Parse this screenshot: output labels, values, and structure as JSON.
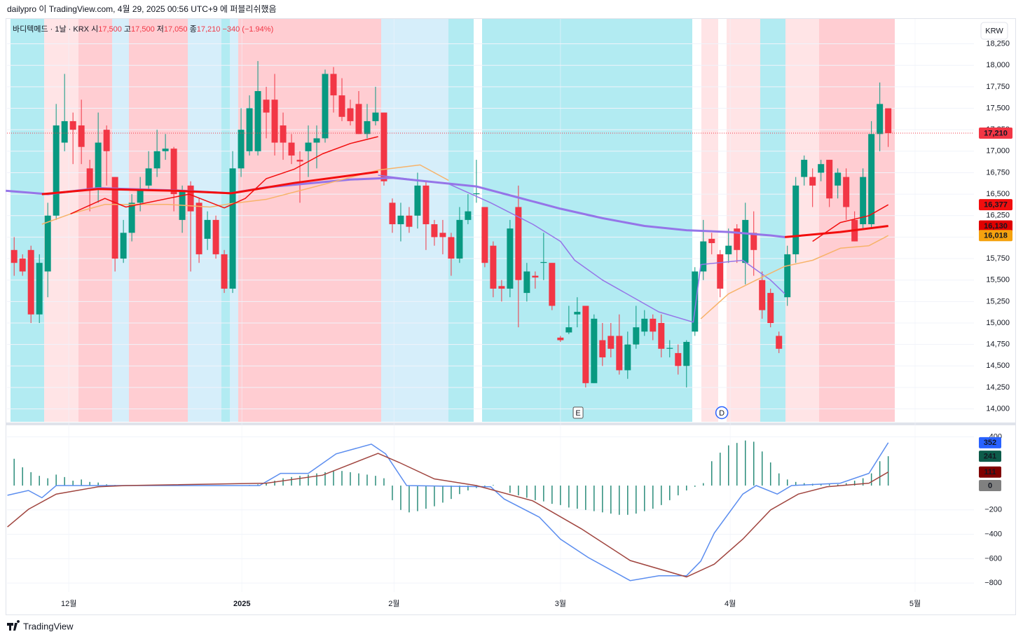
{
  "header": "dailypro 이 TradingView.com, 4월 29, 2025 00:56 UTC+9 에 퍼블리쉬했음",
  "footer": "TradingView",
  "chart_data": [
    {
      "type": "candlestick",
      "legend": {
        "symbol": "바디텍메드 · 1날 · KRX",
        "open_label": "시",
        "open": "17,500",
        "high_label": "고",
        "high": "17,500",
        "low_label": "저",
        "low": "17,050",
        "close_label": "종",
        "close": "17,210",
        "change": "−340 (−1.94%)"
      },
      "currency": "KRW",
      "up_color": "#089981",
      "down_color": "#f23645",
      "open": [
        15850,
        15750,
        15850,
        15100,
        15600,
        16250,
        17100,
        17350,
        17300,
        16800,
        16550,
        17250,
        16700,
        15750,
        16050,
        16400,
        16600,
        16800,
        17000,
        17030,
        16200,
        16600,
        16400,
        15980,
        16200,
        15800,
        15400,
        16800,
        17000,
        17000,
        17600,
        17600,
        17300,
        17100,
        16900,
        17000,
        17100,
        17150,
        17900,
        17650,
        17500,
        17550,
        17200,
        17350,
        17450,
        16400,
        16150,
        16250,
        16250,
        16600,
        16150,
        16050,
        16000,
        15750,
        16200,
        16500,
        16350,
        15900,
        15430,
        15400,
        16350,
        15350,
        15550,
        15700,
        15700,
        14830,
        14890,
        15100,
        15200,
        14300,
        14800,
        14850,
        14850,
        14450,
        14750,
        14900,
        15050,
        15000,
        14700,
        14650,
        14500,
        14900,
        15600,
        15980,
        15800,
        15800,
        16100,
        15700,
        16050,
        15500,
        15350,
        14850,
        15300,
        15800,
        16700,
        16700,
        16750,
        16900,
        16600,
        16700,
        16200,
        16150,
        16150,
        17200,
        17500
      ],
      "high": [
        16000,
        15800,
        15900,
        15800,
        16400,
        17550,
        17900,
        17450,
        17600,
        16900,
        17450,
        17300,
        16700,
        16200,
        16500,
        16700,
        17000,
        17250,
        17200,
        17050,
        16600,
        16650,
        16450,
        16300,
        16250,
        15850,
        17000,
        17500,
        17650,
        18050,
        17750,
        17900,
        17450,
        17200,
        17000,
        17300,
        17300,
        17950,
        17980,
        17850,
        17600,
        17700,
        17550,
        17750,
        17450,
        16450,
        16400,
        16350,
        16750,
        16650,
        16200,
        16200,
        16050,
        16350,
        16500,
        16900,
        16350,
        15950,
        15500,
        16200,
        16600,
        15700,
        15600,
        16050,
        15700,
        14850,
        15200,
        15300,
        15200,
        15100,
        15000,
        15000,
        15100,
        14900,
        15200,
        15150,
        15100,
        15100,
        14800,
        14750,
        14800,
        15650,
        16200,
        16050,
        15850,
        16100,
        16150,
        16400,
        16300,
        15600,
        15400,
        14900,
        15900,
        16700,
        16950,
        16800,
        16900,
        16900,
        16800,
        16800,
        16300,
        16800,
        17350,
        17800,
        17500
      ],
      "low": [
        15550,
        15550,
        15000,
        15000,
        15300,
        16200,
        17000,
        16850,
        16850,
        16300,
        16400,
        16600,
        15600,
        15700,
        15950,
        16300,
        16550,
        16700,
        16900,
        16300,
        16050,
        15600,
        15700,
        15850,
        15750,
        15350,
        15350,
        16700,
        16950,
        16950,
        17150,
        16950,
        16900,
        16850,
        16400,
        16700,
        16800,
        17100,
        17450,
        17350,
        17300,
        17200,
        17150,
        17300,
        16600,
        16050,
        15950,
        16050,
        16100,
        15850,
        15900,
        15800,
        15550,
        15700,
        16150,
        16400,
        15650,
        15300,
        15250,
        15300,
        14950,
        15250,
        15400,
        15500,
        15150,
        14780,
        14870,
        14950,
        14250,
        14300,
        14500,
        14600,
        14400,
        14350,
        14700,
        14850,
        14800,
        14600,
        14600,
        14400,
        14250,
        14850,
        15500,
        15800,
        15300,
        15700,
        15700,
        15450,
        15550,
        15050,
        14950,
        14650,
        15200,
        15700,
        16600,
        16350,
        16650,
        16350,
        16450,
        16200,
        15950,
        16100,
        16100,
        17000,
        17050
      ],
      "close": [
        15700,
        15600,
        15100,
        15700,
        16250,
        17300,
        17350,
        17250,
        17050,
        16550,
        17100,
        17000,
        15750,
        16050,
        16400,
        16550,
        16800,
        17000,
        17030,
        16500,
        16550,
        16300,
        15800,
        16200,
        15800,
        15400,
        16800,
        17250,
        17500,
        17700,
        17450,
        17100,
        17100,
        16950,
        16880,
        17100,
        17150,
        17900,
        17650,
        17400,
        17350,
        17200,
        17350,
        17450,
        16650,
        16150,
        16250,
        16120,
        16600,
        16150,
        16000,
        16000,
        15750,
        16200,
        16300,
        16510,
        15700,
        15400,
        15400,
        16100,
        15500,
        15600,
        15530,
        15710,
        15200,
        14800,
        14950,
        15130,
        14300,
        15050,
        14600,
        14700,
        14450,
        14750,
        14950,
        15050,
        14900,
        14700,
        14710,
        14500,
        14780,
        15600,
        15950,
        15930,
        15400,
        15900,
        15850,
        16200,
        15850,
        15150,
        15000,
        14700,
        15800,
        16600,
        16900,
        16600,
        16850,
        16450,
        16750,
        16350,
        15950,
        16700,
        17200,
        17550,
        17210
      ],
      "xlim": [
        -0.85,
        114.2
      ],
      "xticks": [
        {
          "value": 6.5,
          "label": "12월"
        },
        {
          "value": 27.1,
          "label": "2025",
          "bold": true
        },
        {
          "value": 45.2,
          "label": "2월"
        },
        {
          "value": 65,
          "label": "3월"
        },
        {
          "value": 85.2,
          "label": "4월"
        },
        {
          "value": 107.2,
          "label": "5월"
        }
      ],
      "ylim": [
        13850,
        18540
      ],
      "yticks": [
        {
          "value": 14000,
          "label": "14,000"
        },
        {
          "value": 14250,
          "label": "14,250"
        },
        {
          "value": 14500,
          "label": "14,500"
        },
        {
          "value": 14750,
          "label": "14,750"
        },
        {
          "value": 15000,
          "label": "15,000"
        },
        {
          "value": 15250,
          "label": "15,250"
        },
        {
          "value": 15500,
          "label": "15,500"
        },
        {
          "value": 15750,
          "label": "15,750"
        },
        {
          "value": 16000,
          "label": "16,000"
        },
        {
          "value": 16250,
          "label": "16,250"
        },
        {
          "value": 16500,
          "label": "16,500"
        },
        {
          "value": 16750,
          "label": "16,750"
        },
        {
          "value": 17000,
          "label": "17,000"
        },
        {
          "value": 17250,
          "label": "17,250"
        },
        {
          "value": 17500,
          "label": "17,500"
        },
        {
          "value": 17750,
          "label": "17,750"
        },
        {
          "value": 18000,
          "label": "18,000"
        },
        {
          "value": 18250,
          "label": "18,250"
        }
      ],
      "grid": true,
      "lines": [
        {
          "color": "#9575e8",
          "width": 3,
          "x": [
            -1,
            4,
            10,
            20,
            25.8,
            30,
            40,
            45,
            55,
            60,
            65,
            70,
            75,
            80,
            85,
            90,
            91.7
          ],
          "values": [
            16540,
            16500,
            16570,
            16540,
            16510,
            16580,
            16670,
            16690,
            16590,
            16460,
            16330,
            16220,
            16130,
            16080,
            16060,
            16020,
            16000
          ]
        },
        {
          "color": "#9575e8",
          "width": 1.5,
          "x": [
            43.3,
            51.7,
            56.7,
            61.7,
            65,
            66.7,
            70,
            76.7,
            80.8,
            81.7,
            86.7,
            90,
            91.7
          ],
          "values": [
            16720,
            16620,
            16400,
            16150,
            15950,
            15730,
            15500,
            15130,
            15010,
            15680,
            15730,
            15500,
            15340
          ]
        },
        {
          "color": "#f7b36a",
          "width": 1.5,
          "x": [
            3.3,
            6.7,
            10.8,
            18.3,
            23.3,
            25.8,
            30,
            36.7,
            43.3,
            48.3,
            51.7
          ],
          "values": [
            16150,
            16270,
            16380,
            16380,
            16350,
            16390,
            16440,
            16610,
            16780,
            16840,
            16660
          ]
        },
        {
          "color": "#f7b36a",
          "width": 1.5,
          "x": [
            81.7,
            85,
            88.3,
            91.7,
            95,
            98.3,
            101.7,
            104
          ],
          "values": [
            15050,
            15340,
            15500,
            15660,
            15730,
            15870,
            15900,
            16018
          ]
        },
        {
          "color": "#f20e0e",
          "width": 3,
          "x": [
            3.3,
            10,
            19.2,
            25.8,
            33.3,
            43.3
          ],
          "values": [
            16500,
            16560,
            16540,
            16510,
            16630,
            16760
          ]
        },
        {
          "color": "#f20e0e",
          "width": 3,
          "x": [
            91.7,
            98.3,
            104
          ],
          "values": [
            16000,
            16060,
            16130
          ]
        },
        {
          "color": "#f20e0e",
          "width": 1.5,
          "x": [
            6.7,
            10.8,
            13.3,
            20.8,
            25,
            27.5,
            30,
            33.3,
            36.7,
            40,
            43.3
          ],
          "values": [
            16270,
            16450,
            16350,
            16500,
            16340,
            16450,
            16680,
            16790,
            16970,
            17090,
            17170
          ]
        },
        {
          "color": "#f20e0e",
          "width": 1.5,
          "x": [
            95,
            98.3,
            101.7,
            104
          ],
          "values": [
            15950,
            16170,
            16250,
            16377
          ]
        }
      ],
      "price_tags": [
        {
          "value": 17210,
          "label": "17,210",
          "color": "#f23645"
        },
        {
          "value": 16377,
          "label": "16,377",
          "color": "#f20e0e"
        },
        {
          "value": 16130,
          "label": "16,130",
          "color": "#e00000"
        },
        {
          "value": 16018,
          "label": "16,018",
          "color": "#f5a20f"
        }
      ],
      "events": [
        {
          "x": 67.1,
          "label": "E"
        },
        {
          "x": 84.2,
          "label": "D"
        }
      ]
    },
    {
      "type": "macd",
      "ylim": [
        -874,
        466
      ],
      "yticks": [
        400,
        {
          "value": -200,
          "label": "−200"
        },
        {
          "value": -400,
          "label": "−400"
        },
        {
          "value": -600,
          "label": "−600"
        },
        {
          "value": -800,
          "label": "−800"
        }
      ],
      "histogram_color": "#2a8c7a",
      "histogram": [
        220,
        150,
        110,
        80,
        60,
        90,
        70,
        40,
        50,
        30,
        25,
        10,
        5,
        3,
        2,
        0,
        0,
        0,
        0,
        0,
        2,
        3,
        2,
        0,
        0,
        0,
        0,
        0,
        5,
        10,
        20,
        40,
        60,
        70,
        80,
        90,
        100,
        110,
        120,
        120,
        110,
        100,
        90,
        80,
        60,
        -120,
        -200,
        -220,
        -210,
        -190,
        -170,
        -140,
        -110,
        -70,
        -40,
        -20,
        -10,
        5,
        0,
        -60,
        -80,
        -100,
        -120,
        -130,
        -150,
        -160,
        -180,
        -190,
        -200,
        -210,
        -220,
        -230,
        -240,
        -240,
        -230,
        -210,
        -190,
        -160,
        -120,
        -80,
        -40,
        -10,
        20,
        200,
        270,
        330,
        350,
        370,
        360,
        280,
        190,
        100,
        50,
        30,
        20,
        15,
        10,
        10,
        10,
        20,
        40,
        60,
        100,
        200,
        241
      ],
      "macd": {
        "color": "#5b8def",
        "x": [
          -0.8,
          1.7,
          3.3,
          5,
          29.2,
          31.7,
          35,
          38.3,
          42.5,
          44.2,
          46.7,
          56.7,
          58.3,
          62.5,
          65,
          68.3,
          73.3,
          76.7,
          80,
          81.7,
          83.3,
          86.7,
          88.3,
          90.8,
          92.5,
          98.3,
          101.7,
          104
        ],
        "values": [
          -80,
          -40,
          -100,
          0,
          0,
          100,
          100,
          260,
          340,
          260,
          0,
          -10,
          -110,
          -260,
          -440,
          -590,
          -780,
          -740,
          -740,
          -620,
          -390,
          -70,
          0,
          -70,
          0,
          20,
          100,
          352
        ]
      },
      "signal": {
        "color": "#a0453f",
        "x": [
          -0.8,
          1.7,
          5,
          10,
          13.3,
          30,
          36.7,
          43.3,
          45.8,
          50,
          55,
          61.7,
          67.5,
          73.3,
          80,
          83.3,
          86.7,
          90,
          93.3,
          96.7,
          101.7,
          104
        ],
        "values": [
          -340,
          -195,
          -70,
          -10,
          0,
          20,
          85,
          265,
          190,
          55,
          0,
          -125,
          -355,
          -615,
          -750,
          -645,
          -440,
          -200,
          -70,
          -10,
          20,
          111
        ]
      },
      "tags": [
        {
          "value": 352,
          "color": "#2962ff"
        },
        {
          "value": 241,
          "color": "#0d5c4a"
        },
        {
          "value": 111,
          "color": "#7f0000"
        },
        {
          "value": 0,
          "color": "#808080"
        }
      ]
    }
  ]
}
